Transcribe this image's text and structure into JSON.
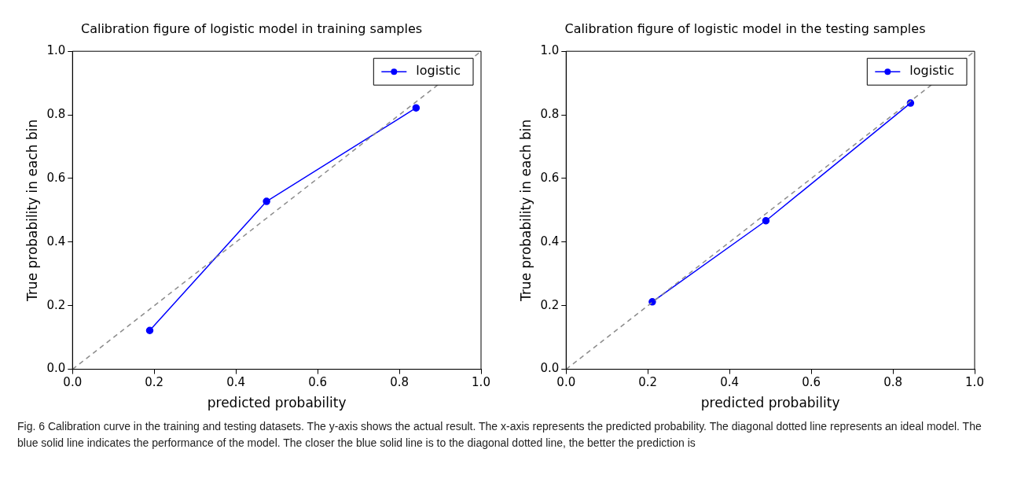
{
  "chart_data": [
    {
      "type": "line",
      "title": "Calibration figure of logistic model in training samples",
      "xlabel": "predicted probability",
      "ylabel": "True probability in each bin",
      "xlim": [
        0,
        1
      ],
      "ylim": [
        0,
        1
      ],
      "xticks": [
        {
          "value": 0,
          "label": "0.0"
        },
        {
          "value": 0.2,
          "label": "0.2"
        },
        {
          "value": 0.4,
          "label": "0.4"
        },
        {
          "value": 0.6,
          "label": "0.6"
        },
        {
          "value": 0.8,
          "label": "0.8"
        },
        {
          "value": 1,
          "label": "1.0"
        }
      ],
      "yticks": [
        {
          "value": 0,
          "label": "0.0"
        },
        {
          "value": 0.2,
          "label": "0.2"
        },
        {
          "value": 0.4,
          "label": "0.4"
        },
        {
          "value": 0.6,
          "label": "0.6"
        },
        {
          "value": 0.8,
          "label": "0.8"
        },
        {
          "value": 1,
          "label": "1.0"
        }
      ],
      "grid": false,
      "legend": "top right",
      "marker": "circle",
      "series": [
        {
          "x": [
            0,
            1
          ],
          "values": [
            0,
            1
          ],
          "color": "#8c8c8c",
          "line_style": "dashed",
          "marker": "none"
        },
        {
          "name": "logistic",
          "x": [
            0.189,
            0.475,
            0.841
          ],
          "values": [
            0.122,
            0.528,
            0.822
          ],
          "color": "#0000ff"
        }
      ]
    },
    {
      "type": "line",
      "title": "Calibration figure of logistic model in the testing samples",
      "xlabel": "predicted probability",
      "ylabel": "True probability in each bin",
      "xlim": [
        0,
        1
      ],
      "ylim": [
        0,
        1
      ],
      "xticks": [
        {
          "value": 0,
          "label": "0.0"
        },
        {
          "value": 0.2,
          "label": "0.2"
        },
        {
          "value": 0.4,
          "label": "0.4"
        },
        {
          "value": 0.6,
          "label": "0.6"
        },
        {
          "value": 0.8,
          "label": "0.8"
        },
        {
          "value": 1,
          "label": "1.0"
        }
      ],
      "yticks": [
        {
          "value": 0,
          "label": "0.0"
        },
        {
          "value": 0.2,
          "label": "0.2"
        },
        {
          "value": 0.4,
          "label": "0.4"
        },
        {
          "value": 0.6,
          "label": "0.6"
        },
        {
          "value": 0.8,
          "label": "0.8"
        },
        {
          "value": 1,
          "label": "1.0"
        }
      ],
      "grid": false,
      "legend": "top right",
      "marker": "circle",
      "series": [
        {
          "x": [
            0,
            1
          ],
          "values": [
            0,
            1
          ],
          "color": "#8c8c8c",
          "line_style": "dashed",
          "marker": "none"
        },
        {
          "name": "logistic",
          "x": [
            0.211,
            0.489,
            0.843
          ],
          "values": [
            0.212,
            0.467,
            0.837
          ],
          "color": "#0000ff"
        }
      ],
      "annotations": [
        "Fig. 6  Calibration curve in the training and testing datasets. The y-axis shows the actual result. The x-axis represents the predicted probability. The diagonal dotted line represents an ideal model. The blue solid line indicates the performance of the model. The closer the blue solid line is to the diagonal dotted line, the better the prediction is"
      ]
    }
  ]
}
